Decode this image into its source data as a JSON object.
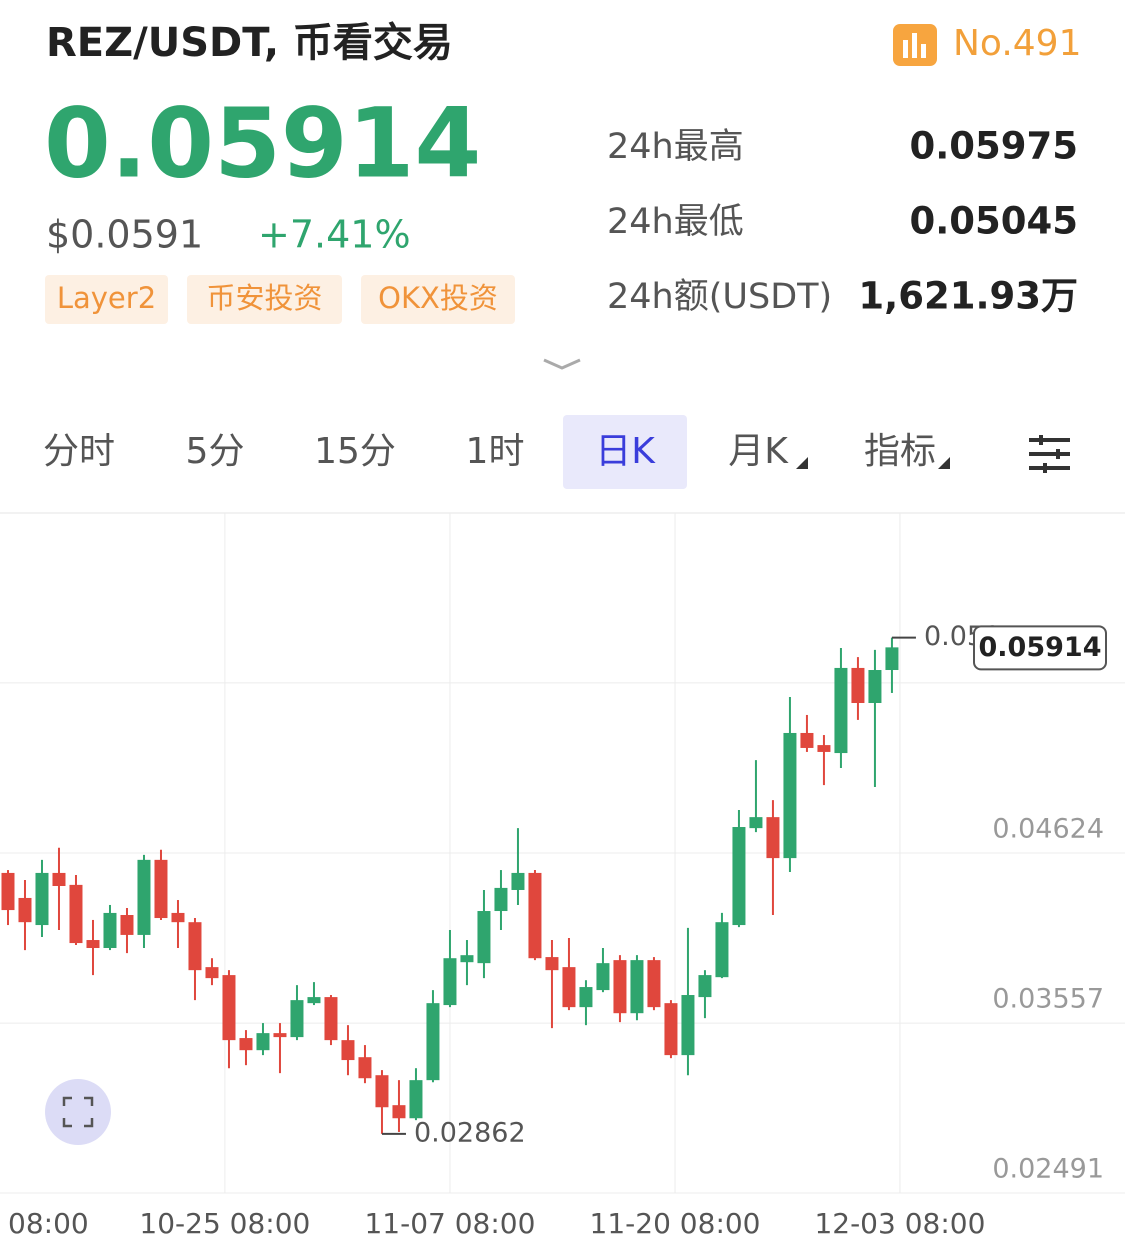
{
  "header": {
    "title": "REZ/USDT, 币看交易",
    "rank": "No.491"
  },
  "price": {
    "last": "0.05914",
    "usd": "$0.0591",
    "change": "+7.41%"
  },
  "tags": [
    "Layer2",
    "币安投资",
    "OKX投资"
  ],
  "stats": [
    {
      "label": "24h最高",
      "value": "0.05975"
    },
    {
      "label": "24h最低",
      "value": "0.05045"
    },
    {
      "label": "24h额(USDT)",
      "value": "1,621.93万"
    }
  ],
  "tabs": [
    "分时",
    "5分",
    "15分",
    "1时",
    "日K",
    "月K",
    "指标"
  ],
  "active_tab": 4,
  "chart_data": {
    "type": "candlestick",
    "x": [
      0,
      1,
      2,
      3,
      4,
      5,
      6,
      7,
      8,
      9,
      10,
      11,
      12,
      13,
      14,
      15,
      16,
      17,
      18,
      19,
      20,
      21,
      22,
      23,
      24,
      25,
      26,
      27,
      28,
      29,
      30,
      31,
      32,
      33,
      34,
      35,
      36,
      37,
      38,
      39,
      40,
      41,
      42,
      43,
      44,
      45,
      46,
      47,
      48,
      49,
      50,
      51,
      52
    ],
    "open": [
      0.04499,
      0.04342,
      0.04172,
      0.04499,
      0.04424,
      0.04078,
      0.04028,
      0.04235,
      0.0411,
      0.04581,
      0.04248,
      0.0419,
      0.03908,
      0.03858,
      0.03463,
      0.03387,
      0.03494,
      0.03469,
      0.03682,
      0.0372,
      0.0345,
      0.03343,
      0.0323,
      0.03042,
      0.0296,
      0.03199,
      0.0367,
      0.03939,
      0.03933,
      0.0426,
      0.04392,
      0.04499,
      0.03971,
      0.03908,
      0.03657,
      0.03764,
      0.03952,
      0.03619,
      0.03952,
      0.03682,
      0.03356,
      0.0372,
      0.03845,
      0.04172,
      0.0478,
      0.04849,
      0.04592,
      0.05377,
      0.05301,
      0.05251,
      0.05785,
      0.05565,
      0.05772
    ],
    "high": [
      0.04517,
      0.04455,
      0.04581,
      0.04657,
      0.04486,
      0.04204,
      0.04298,
      0.04279,
      0.04612,
      0.04644,
      0.04329,
      0.04216,
      0.03964,
      0.03889,
      0.03513,
      0.03557,
      0.03557,
      0.03795,
      0.03814,
      0.03733,
      0.03544,
      0.03419,
      0.03262,
      0.03199,
      0.03274,
      0.03764,
      0.04141,
      0.04078,
      0.04392,
      0.04517,
      0.0478,
      0.04517,
      0.04078,
      0.04091,
      0.03826,
      0.04028,
      0.03983,
      0.03983,
      0.03971,
      0.03701,
      0.04154,
      0.03889,
      0.04248,
      0.04894,
      0.05207,
      0.04956,
      0.05603,
      0.0549,
      0.05364,
      0.0591,
      0.05853,
      0.05898,
      0.05975
    ],
    "low": [
      0.04172,
      0.04015,
      0.04097,
      0.04141,
      0.04047,
      0.03858,
      0.04015,
      0.03996,
      0.04028,
      0.04204,
      0.04028,
      0.03701,
      0.03795,
      0.03274,
      0.03293,
      0.03356,
      0.03243,
      0.0345,
      0.0367,
      0.03419,
      0.0323,
      0.0318,
      0.02862,
      0.02874,
      0.02948,
      0.03186,
      0.03657,
      0.03795,
      0.03839,
      0.04141,
      0.04298,
      0.03952,
      0.03525,
      0.03638,
      0.03544,
      0.03751,
      0.03563,
      0.03575,
      0.03638,
      0.03337,
      0.0323,
      0.03588,
      0.03839,
      0.04159,
      0.04755,
      0.04235,
      0.04505,
      0.05258,
      0.0505,
      0.05157,
      0.05459,
      0.05038,
      0.05628
    ],
    "close": [
      0.04266,
      0.0419,
      0.04499,
      0.04417,
      0.04059,
      0.04028,
      0.04248,
      0.0411,
      0.04581,
      0.04216,
      0.0419,
      0.03889,
      0.03839,
      0.0345,
      0.03387,
      0.03494,
      0.03469,
      0.03701,
      0.0372,
      0.0345,
      0.03325,
      0.03211,
      0.03029,
      0.0296,
      0.03199,
      0.03682,
      0.03964,
      0.03983,
      0.0426,
      0.04405,
      0.04499,
      0.03964,
      0.03889,
      0.03657,
      0.03783,
      0.03933,
      0.03619,
      0.03952,
      0.03657,
      0.03356,
      0.03733,
      0.03858,
      0.0419,
      0.04787,
      0.04849,
      0.04592,
      0.05377,
      0.05283,
      0.05258,
      0.05785,
      0.05565,
      0.05772,
      0.05914
    ],
    "up_color": "#2fa56e",
    "down_color": "#e0473d",
    "xlim": [
      -0.47,
      65.71
    ],
    "xticks": [
      {
        "value": -0.47,
        "label": "08:00"
      },
      {
        "value": 12.76,
        "label": "10-25 08:00"
      },
      {
        "value": 26.0,
        "label": "11-07 08:00"
      },
      {
        "value": 39.24,
        "label": "11-20 08:00"
      },
      {
        "value": 52.47,
        "label": "12-03 08:00"
      }
    ],
    "ylim": [
      0.02491,
      0.06757
    ],
    "yticks": [
      0.02491,
      0.03557,
      0.04624,
      0.05691
    ],
    "grid": true,
    "max_index": 52,
    "min_index": 22
  }
}
